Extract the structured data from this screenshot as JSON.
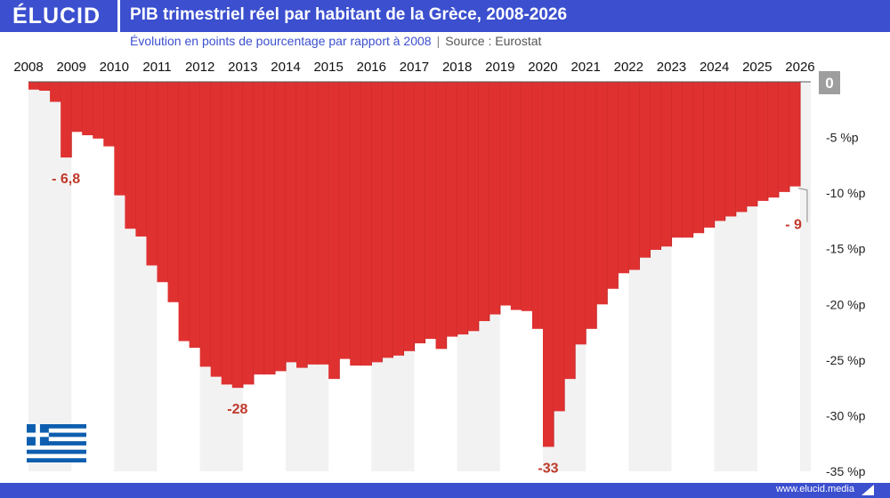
{
  "header": {
    "logo": "ÉLUCID",
    "title": "PIB trimestriel réel par habitant de la Grèce, 2008-2026"
  },
  "subtitle": {
    "main": "Évolution en points de pourcentage par rapport à 2008",
    "separator": "|",
    "source": "Source : Eurostat"
  },
  "footer": {
    "url": "www.elucid.media"
  },
  "colors": {
    "header": "#3b4fcf",
    "bars": "#e03131",
    "annotation": "#c0392b",
    "band": "#f2f2f2",
    "zero_badge": "#9e9e9e"
  },
  "icons": {
    "flag": "greece-flag-icon",
    "logo": "elucid-logo"
  },
  "chart_data": {
    "type": "bar",
    "title": "PIB trimestriel réel par habitant de la Grèce, 2008-2026",
    "xlabel": "",
    "ylabel": "",
    "x_tick_labels": [
      "2008",
      "2009",
      "2010",
      "2011",
      "2012",
      "2013",
      "2014",
      "2015",
      "2016",
      "2017",
      "2018",
      "2019",
      "2020",
      "2021",
      "2022",
      "2023",
      "2024",
      "2025",
      "2026"
    ],
    "x_tick_positions": [
      2008,
      2009,
      2010,
      2011,
      2012,
      2013,
      2014,
      2015,
      2016,
      2017,
      2018,
      2019,
      2020,
      2021,
      2022,
      2023,
      2024,
      2025,
      2026
    ],
    "y_tick_labels": [
      "0",
      "-5 %p",
      "-10 %p",
      "-15 %p",
      "-20 %p",
      "-25 %p",
      "-30 %p",
      "-35 %p"
    ],
    "y_tick_values": [
      0,
      -5,
      -10,
      -15,
      -20,
      -25,
      -30,
      -35
    ],
    "ylim": [
      -35,
      0
    ],
    "xlim": [
      2008.0,
      2026.25
    ],
    "grid": false,
    "alternating_year_bands": true,
    "x": [
      2008.25,
      2008.5,
      2008.75,
      2009.0,
      2009.25,
      2009.5,
      2009.75,
      2010.0,
      2010.25,
      2010.5,
      2010.75,
      2011.0,
      2011.25,
      2011.5,
      2011.75,
      2012.0,
      2012.25,
      2012.5,
      2012.75,
      2013.0,
      2013.25,
      2013.5,
      2013.75,
      2014.0,
      2014.25,
      2014.5,
      2014.75,
      2015.0,
      2015.25,
      2015.5,
      2015.75,
      2016.0,
      2016.25,
      2016.5,
      2016.75,
      2017.0,
      2017.25,
      2017.5,
      2017.75,
      2018.0,
      2018.25,
      2018.5,
      2018.75,
      2019.0,
      2019.25,
      2019.5,
      2019.75,
      2020.0,
      2020.25,
      2020.5,
      2020.75,
      2021.0,
      2021.25,
      2021.5,
      2021.75,
      2022.0,
      2022.25,
      2022.5,
      2022.75,
      2023.0,
      2023.25,
      2023.5,
      2023.75,
      2024.0,
      2024.25,
      2024.5,
      2024.75,
      2025.0,
      2025.25,
      2025.5,
      2025.75,
      2026.0
    ],
    "values": [
      -0.7,
      -0.8,
      -1.8,
      -6.8,
      -4.5,
      -4.8,
      -5.1,
      -5.8,
      -10.2,
      -13.2,
      -13.9,
      -16.5,
      -18.0,
      -19.8,
      -23.3,
      -23.9,
      -25.6,
      -26.5,
      -27.2,
      -27.5,
      -27.2,
      -26.3,
      -26.3,
      -26.0,
      -25.2,
      -25.7,
      -25.4,
      -25.4,
      -26.7,
      -24.9,
      -25.5,
      -25.5,
      -25.2,
      -24.8,
      -24.6,
      -24.2,
      -23.5,
      -23.1,
      -24.0,
      -22.9,
      -22.7,
      -22.4,
      -21.5,
      -20.9,
      -20.1,
      -20.5,
      -20.6,
      -22.2,
      -32.8,
      -29.6,
      -26.7,
      -23.6,
      -22.2,
      -20.0,
      -18.6,
      -17.2,
      -16.9,
      -15.8,
      -15.1,
      -14.8,
      -14.0,
      -14.0,
      -13.6,
      -13.1,
      -12.5,
      -12.1,
      -11.7,
      -11.2,
      -10.7,
      -10.4,
      -9.9,
      -9.4
    ],
    "annotations": [
      {
        "text": "- 6,8",
        "x": 2009.0,
        "y": -6.8
      },
      {
        "text": "-28",
        "x": 2013.0,
        "y": -27.5
      },
      {
        "text": "-33",
        "x": 2020.25,
        "y": -32.8
      },
      {
        "text": "- 9",
        "x": 2026.0,
        "y": -9.4
      }
    ]
  }
}
